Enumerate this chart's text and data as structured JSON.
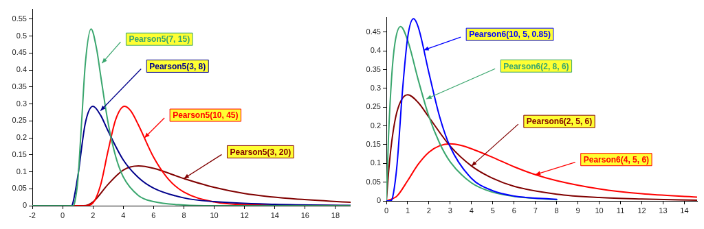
{
  "chart_data": [
    {
      "type": "line",
      "xlim": [
        -2,
        19
      ],
      "ylim": [
        0,
        0.58
      ],
      "xticks": [
        -2,
        0,
        2,
        4,
        6,
        8,
        10,
        12,
        14,
        16,
        18
      ],
      "yticks": [
        0,
        0.05,
        0.1,
        0.15,
        0.2,
        0.25,
        0.3,
        0.35,
        0.4,
        0.45,
        0.5,
        0.55
      ],
      "marker": "none",
      "series": [
        {
          "color": "#3aa66e",
          "x": [
            -2,
            0.7,
            0.8,
            1,
            1.25,
            1.5,
            1.875,
            2.25,
            2.5,
            3,
            3.5,
            4,
            5,
            6,
            8,
            10,
            19
          ],
          "values": [
            0,
            0,
            0.01,
            0.073,
            0.245,
            0.42,
            0.521,
            0.46,
            0.386,
            0.244,
            0.145,
            0.085,
            0.03,
            0.012,
            0.002,
            0,
            0
          ]
        },
        {
          "color": "#00008b",
          "x": [
            -2,
            0.6,
            0.7,
            1,
            1.5,
            2,
            2.5,
            3,
            4,
            5,
            6,
            8,
            10,
            14,
            19
          ],
          "values": [
            0,
            0,
            0.012,
            0.086,
            0.244,
            0.293,
            0.267,
            0.22,
            0.135,
            0.083,
            0.052,
            0.023,
            0.012,
            0.004,
            0.001
          ]
        },
        {
          "color": "#ff0000",
          "x": [
            -2,
            1.5,
            2,
            2.5,
            3,
            3.5,
            4.09,
            4.5,
            5,
            6,
            7,
            8,
            10,
            12,
            19
          ],
          "values": [
            0,
            0,
            0.008,
            0.06,
            0.162,
            0.254,
            0.293,
            0.279,
            0.238,
            0.143,
            0.077,
            0.04,
            0.011,
            0.003,
            0
          ]
        },
        {
          "color": "#800000",
          "x": [
            -2,
            1.4,
            2,
            3,
            4,
            5,
            6,
            8,
            10,
            12,
            15,
            19
          ],
          "values": [
            0,
            0,
            0.011,
            0.063,
            0.105,
            0.117,
            0.11,
            0.08,
            0.054,
            0.036,
            0.021,
            0.01
          ]
        }
      ],
      "annotations": [
        {
          "text": "Pearson5(7, 15)",
          "x": 2.6,
          "y": 0.42
        },
        {
          "text": "Pearson5(3, 8)",
          "x": 2.5,
          "y": 0.28
        },
        {
          "text": "Pearson5(10, 45)",
          "x": 5.4,
          "y": 0.2
        },
        {
          "text": "Pearson5(3, 20)",
          "x": 8,
          "y": 0.08
        }
      ]
    },
    {
      "type": "line",
      "xlim": [
        0,
        14.6
      ],
      "ylim": [
        0,
        0.49
      ],
      "xticks": [
        0,
        1,
        2,
        3,
        4,
        5,
        6,
        7,
        8,
        9,
        10,
        11,
        12,
        13,
        14
      ],
      "yticks": [
        0,
        0.05,
        0.1,
        0.15,
        0.2,
        0.25,
        0.3,
        0.35,
        0.4,
        0.45
      ],
      "marker": "none",
      "series": [
        {
          "color": "#0000ff",
          "x": [
            0,
            0.2,
            0.3,
            0.5,
            0.75,
            1,
            1.275,
            1.5,
            2,
            2.5,
            3,
            4,
            5,
            6,
            8
          ],
          "values": [
            0,
            0,
            0.011,
            0.096,
            0.289,
            0.436,
            0.486,
            0.463,
            0.341,
            0.225,
            0.144,
            0.06,
            0.027,
            0.013,
            0.004
          ]
        },
        {
          "color": "#3aa66e",
          "x": [
            0,
            0.1,
            0.25,
            0.4,
            0.667,
            1,
            1.5,
            2,
            2.5,
            3,
            4,
            5,
            6,
            8
          ],
          "values": [
            0,
            0.17,
            0.332,
            0.42,
            0.465,
            0.428,
            0.322,
            0.225,
            0.154,
            0.104,
            0.048,
            0.023,
            0.012,
            0.003
          ]
        },
        {
          "color": "#800000",
          "x": [
            0,
            0.1,
            0.25,
            0.5,
            1,
            1.5,
            2,
            3,
            4,
            5,
            6,
            8,
            10,
            12,
            14.6
          ],
          "values": [
            0,
            0.074,
            0.157,
            0.238,
            0.283,
            0.262,
            0.223,
            0.146,
            0.093,
            0.06,
            0.039,
            0.018,
            0.009,
            0.005,
            0.002
          ]
        },
        {
          "color": "#ff0000",
          "x": [
            0,
            0.5,
            1,
            1.5,
            2,
            2.5,
            3,
            3.5,
            4,
            5,
            6,
            7,
            8,
            10,
            12,
            14.6
          ],
          "values": [
            0,
            0.013,
            0.054,
            0.098,
            0.13,
            0.147,
            0.152,
            0.148,
            0.139,
            0.116,
            0.091,
            0.07,
            0.054,
            0.032,
            0.019,
            0.01
          ]
        }
      ],
      "annotations": [
        {
          "text": "Pearson6(10, 5, 0.85)",
          "x": 1.75,
          "y": 0.402
        },
        {
          "text": "Pearson6(2, 8, 6)",
          "x": 1.88,
          "y": 0.272
        },
        {
          "text": "Pearson6(2, 5, 6)",
          "x": 4,
          "y": 0.093
        },
        {
          "text": "Pearson6(4, 5, 6)",
          "x": 7,
          "y": 0.07
        }
      ]
    }
  ]
}
